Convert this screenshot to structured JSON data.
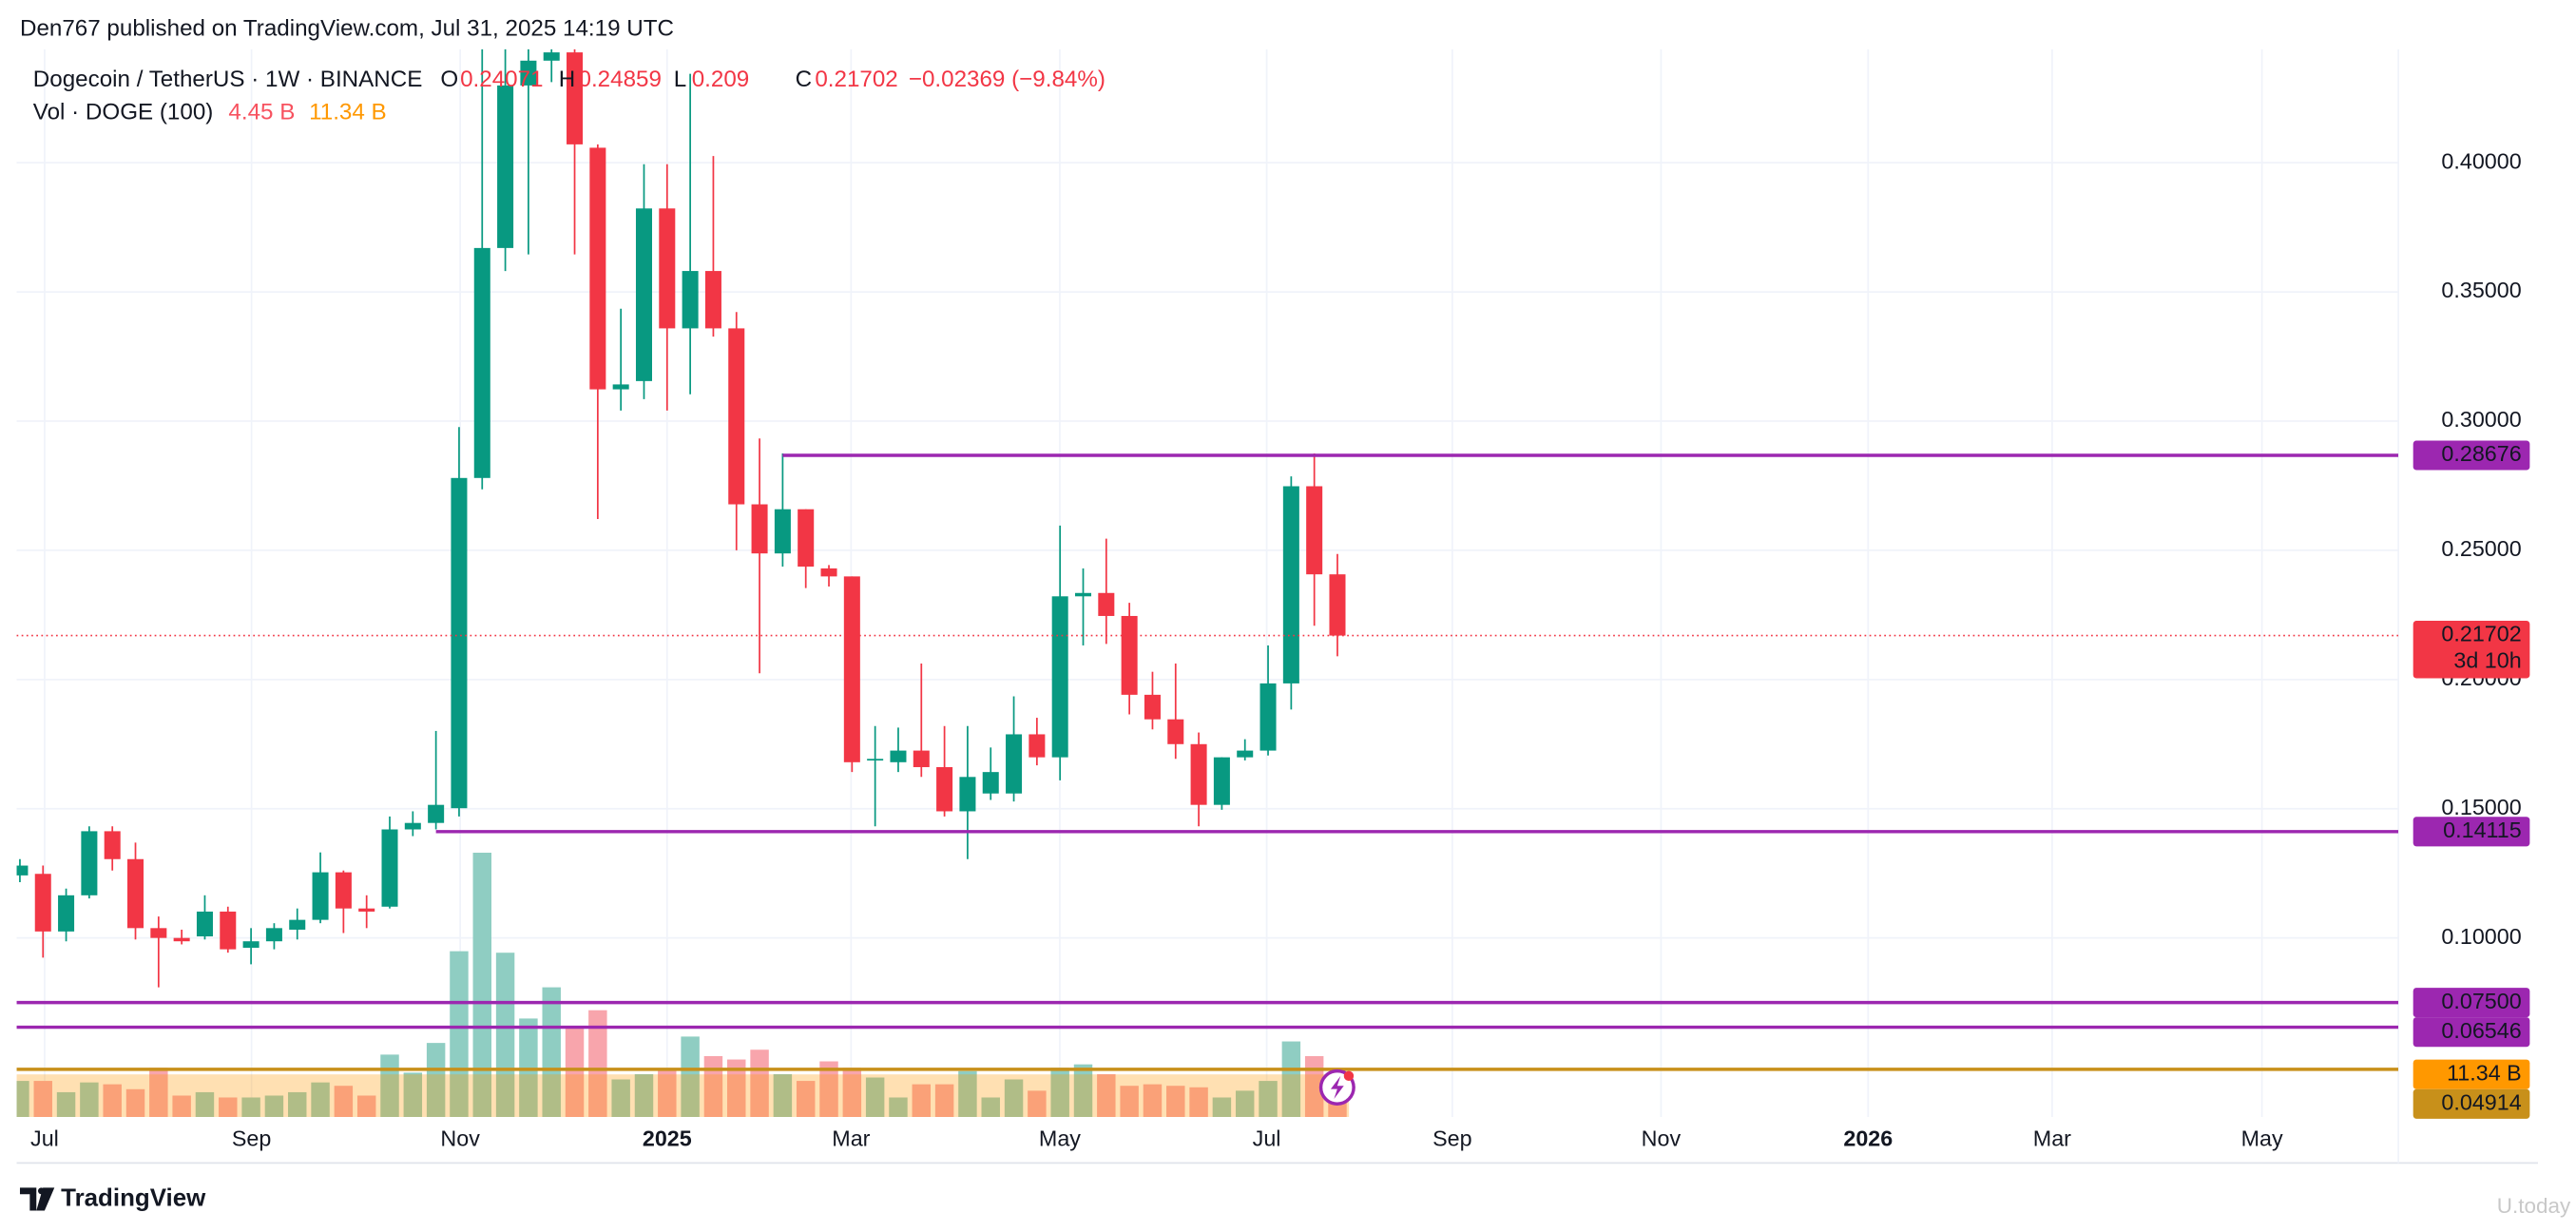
{
  "header": {
    "byline": "Den767 published on TradingView.com, Jul 31, 2025 14:19 UTC",
    "symbol": "Dogecoin / TetherUS · 1W · BINANCE",
    "ohlc_letters": [
      "O",
      "H",
      "L",
      "C"
    ],
    "change": "−0.02369 (−9.84%)",
    "volume_title": "Vol · DOGE (100)",
    "countdown": "3d 10h",
    "logo": "TradingView",
    "watermark": "U.today"
  },
  "chart_data": {
    "type": "candlestick",
    "open": [
      0.1242,
      0.1248,
      0.1025,
      0.1165,
      0.1413,
      0.1305,
      0.1038,
      0.1,
      0.1006,
      0.1102,
      0.0962,
      0.0987,
      0.1032,
      0.107,
      0.1254,
      0.1114,
      0.1121,
      0.142,
      0.1445,
      0.1502,
      0.278,
      0.367,
      0.4299,
      0.4395,
      0.4427,
      0.4058,
      0.3123,
      0.3155,
      0.3823,
      0.3359,
      0.3581,
      0.3359,
      0.2678,
      0.2488,
      0.2659,
      0.243,
      0.2399,
      0.1687,
      0.168,
      0.1725,
      0.1661,
      0.149,
      0.1559,
      0.1559,
      0.1788,
      0.1699,
      0.2322,
      0.2335,
      0.2246,
      0.1941,
      0.1846,
      0.175,
      0.1515,
      0.1699,
      0.1725,
      0.1985,
      0.2748,
      0.24071
    ],
    "high": [
      0.1305,
      0.128,
      0.1191,
      0.1432,
      0.1432,
      0.1369,
      0.1083,
      0.1032,
      0.1165,
      0.1121,
      0.1038,
      0.1057,
      0.1114,
      0.1331,
      0.1261,
      0.1165,
      0.147,
      0.149,
      0.1801,
      0.2977,
      0.455,
      0.46,
      0.4843,
      0.47,
      0.46,
      0.4071,
      0.3435,
      0.3994,
      0.3994,
      0.4344,
      0.4026,
      0.3422,
      0.2933,
      0.2875,
      0.2659,
      0.2443,
      0.2399,
      0.182,
      0.1814,
      0.2062,
      0.182,
      0.182,
      0.1737,
      0.1935,
      0.1852,
      0.2596,
      0.243,
      0.2545,
      0.2297,
      0.203,
      0.2062,
      0.1795,
      0.1699,
      0.1769,
      0.2132,
      0.2786,
      0.2875,
      0.24859
    ],
    "low": [
      0.1216,
      0.0924,
      0.0987,
      0.1153,
      0.1261,
      0.0994,
      0.0809,
      0.0975,
      0.0994,
      0.0943,
      0.0898,
      0.0956,
      0.0994,
      0.1057,
      0.1019,
      0.1038,
      0.1114,
      0.1394,
      0.142,
      0.147,
      0.2736,
      0.3581,
      0.3645,
      0.4312,
      0.3645,
      0.2621,
      0.3041,
      0.3085,
      0.3041,
      0.3104,
      0.3327,
      0.25,
      0.2024,
      0.2437,
      0.2354,
      0.236,
      0.1642,
      0.1432,
      0.1642,
      0.1623,
      0.147,
      0.1305,
      0.1534,
      0.1528,
      0.1668,
      0.161,
      0.2132,
      0.2138,
      0.1865,
      0.1807,
      0.1693,
      0.1432,
      0.1496,
      0.1687,
      0.1706,
      0.1884,
      0.2208,
      0.209
    ],
    "close": [
      0.128,
      0.1025,
      0.1165,
      0.1413,
      0.1305,
      0.1038,
      0.1,
      0.0987,
      0.1102,
      0.0956,
      0.0987,
      0.1038,
      0.107,
      0.1254,
      0.1114,
      0.1102,
      0.142,
      0.1445,
      0.1515,
      0.278,
      0.367,
      0.4299,
      0.4395,
      0.4427,
      0.4071,
      0.3123,
      0.3142,
      0.3823,
      0.3359,
      0.3581,
      0.3359,
      0.2678,
      0.2488,
      0.2659,
      0.2437,
      0.2399,
      0.168,
      0.1693,
      0.1725,
      0.1661,
      0.149,
      0.1623,
      0.1642,
      0.1788,
      0.1699,
      0.2322,
      0.2335,
      0.2246,
      0.1941,
      0.1846,
      0.175,
      0.1515,
      0.1699,
      0.1725,
      0.1985,
      0.2748,
      0.24071,
      0.21702
    ],
    "up_color": "#089981",
    "down_color": "#f23645",
    "volume": {
      "axis": "y2",
      "values": [
        9.6,
        9.6,
        6.6,
        9.2,
        8.7,
        7.4,
        13.1,
        5.7,
        6.6,
        5.2,
        5.2,
        5.7,
        6.6,
        9.2,
        8.3,
        5.7,
        16.6,
        11.8,
        19.7,
        44.1,
        70.3,
        43.7,
        26.2,
        34.5,
        23.6,
        28.4,
        10.0,
        11.4,
        12.7,
        21.4,
        16.2,
        15.3,
        17.9,
        11.4,
        9.6,
        14.8,
        13.1,
        10.5,
        5.2,
        8.7,
        8.7,
        12.2,
        5.2,
        10.0,
        7.0,
        13.1,
        14.0,
        11.4,
        8.3,
        8.7,
        8.3,
        7.9,
        5.2,
        7.0,
        9.6,
        20.1,
        16.2,
        4.45
      ],
      "last_label": "4.45 B",
      "ma": 11.34,
      "ma_label": "11.34 B",
      "up_color": "#8fcdc2",
      "down_color": "#f8a5ac",
      "ma_color": "#ff9800"
    },
    "levels": [
      {
        "value": 0.28676,
        "start": 33,
        "color": "#9c27b0"
      },
      {
        "value": 0.14115,
        "start": 18,
        "color": "#9c27b0"
      },
      {
        "value": 0.075,
        "label": "0.07500",
        "color": "#9c27b0"
      },
      {
        "value": 0.06546,
        "color": "#9c27b0"
      },
      {
        "value": 0.04914,
        "color": "#c8901a"
      }
    ],
    "xlim": [
      -0.14,
      102.9
    ],
    "xticks": [
      {
        "value": 1.07,
        "label": "Jul"
      },
      {
        "value": 10.02,
        "label": "Sep"
      },
      {
        "value": 19.05,
        "label": "Nov"
      },
      {
        "value": 28.0,
        "label": "2025"
      },
      {
        "value": 35.96,
        "label": "Mar"
      },
      {
        "value": 44.99,
        "label": "May"
      },
      {
        "value": 53.94,
        "label": "Jul"
      },
      {
        "value": 61.97,
        "label": "Sep"
      },
      {
        "value": 71.0,
        "label": "Nov"
      },
      {
        "value": 79.96,
        "label": "2026"
      },
      {
        "value": 87.92,
        "label": "Mar"
      },
      {
        "value": 97.0,
        "label": "May"
      }
    ],
    "ylim": [
      0.0307,
      0.4439
    ],
    "yticks": [
      {
        "value": 0.1,
        "label": "0.10000"
      },
      {
        "value": 0.15,
        "label": "0.15000"
      },
      {
        "value": 0.2,
        "label": "0.20000"
      },
      {
        "value": 0.25,
        "label": "0.25000"
      },
      {
        "value": 0.3,
        "label": "0.30000"
      },
      {
        "value": 0.35,
        "label": "0.35000"
      },
      {
        "value": 0.4,
        "label": "0.40000"
      }
    ],
    "y2lim": [
      0,
      284
    ],
    "grid": true
  }
}
